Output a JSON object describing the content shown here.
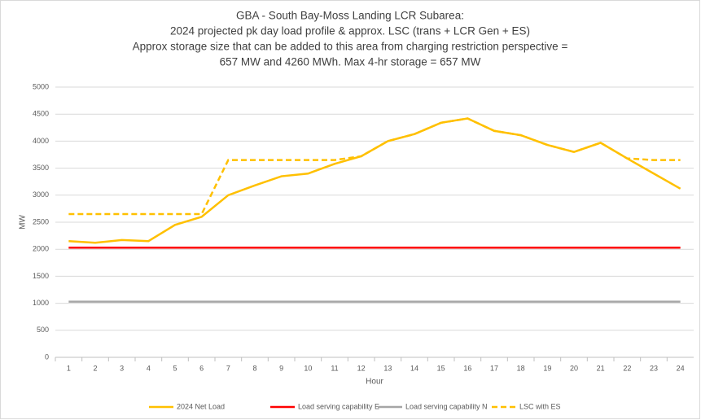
{
  "chart_data": {
    "type": "line",
    "title": [
      "GBA - South Bay-Moss Landing LCR Subarea:",
      "2024 projected pk day load profile & approx. LSC (trans + LCR Gen + ES)",
      "Approx storage size that can be added to this area from charging restriction perspective =",
      "657 MW and 4260 MWh. Max 4-hr storage = 657 MW"
    ],
    "x_label": "Hour",
    "y_label": "MW",
    "categories": [
      "1",
      "2",
      "3",
      "4",
      "5",
      "6",
      "7",
      "8",
      "9",
      "10",
      "11",
      "12",
      "13",
      "14",
      "15",
      "16",
      "17",
      "18",
      "19",
      "20",
      "21",
      "22",
      "23",
      "24"
    ],
    "series": [
      {
        "name": "2024 Net Load",
        "color": "#ffc000",
        "dashed": false,
        "values": [
          2150,
          2120,
          2170,
          2150,
          2450,
          2600,
          3000,
          3180,
          3350,
          3400,
          3580,
          3720,
          4000,
          4130,
          4340,
          4420,
          4190,
          4110,
          3930,
          3800,
          3970,
          3680,
          3400,
          3120
        ]
      },
      {
        "name": "Load serving capability E",
        "color": "#ff0000",
        "dashed": false,
        "values": [
          2030,
          2030,
          2030,
          2030,
          2030,
          2030,
          2030,
          2030,
          2030,
          2030,
          2030,
          2030,
          2030,
          2030,
          2030,
          2030,
          2030,
          2030,
          2030,
          2030,
          2030,
          2030,
          2030,
          2030
        ]
      },
      {
        "name": "Load serving capability N",
        "color": "#a6a6a6",
        "dashed": false,
        "values": [
          1030,
          1030,
          1030,
          1030,
          1030,
          1030,
          1030,
          1030,
          1030,
          1030,
          1030,
          1030,
          1030,
          1030,
          1030,
          1030,
          1030,
          1030,
          1030,
          1030,
          1030,
          1030,
          1030,
          1030
        ]
      },
      {
        "name": "LSC with ES",
        "color": "#ffc000",
        "dashed": true,
        "values": [
          2650,
          2650,
          2650,
          2650,
          2650,
          2650,
          3650,
          3650,
          3650,
          3650,
          3650,
          3720,
          4000,
          4130,
          4340,
          4420,
          4190,
          4110,
          3930,
          3800,
          3970,
          3680,
          3650,
          3650
        ]
      }
    ],
    "ylim": [
      0,
      5000
    ],
    "yticks": [
      0,
      500,
      1000,
      1500,
      2000,
      2500,
      3000,
      3500,
      4000,
      4500,
      5000
    ],
    "grid": true,
    "legend": "bottom"
  }
}
